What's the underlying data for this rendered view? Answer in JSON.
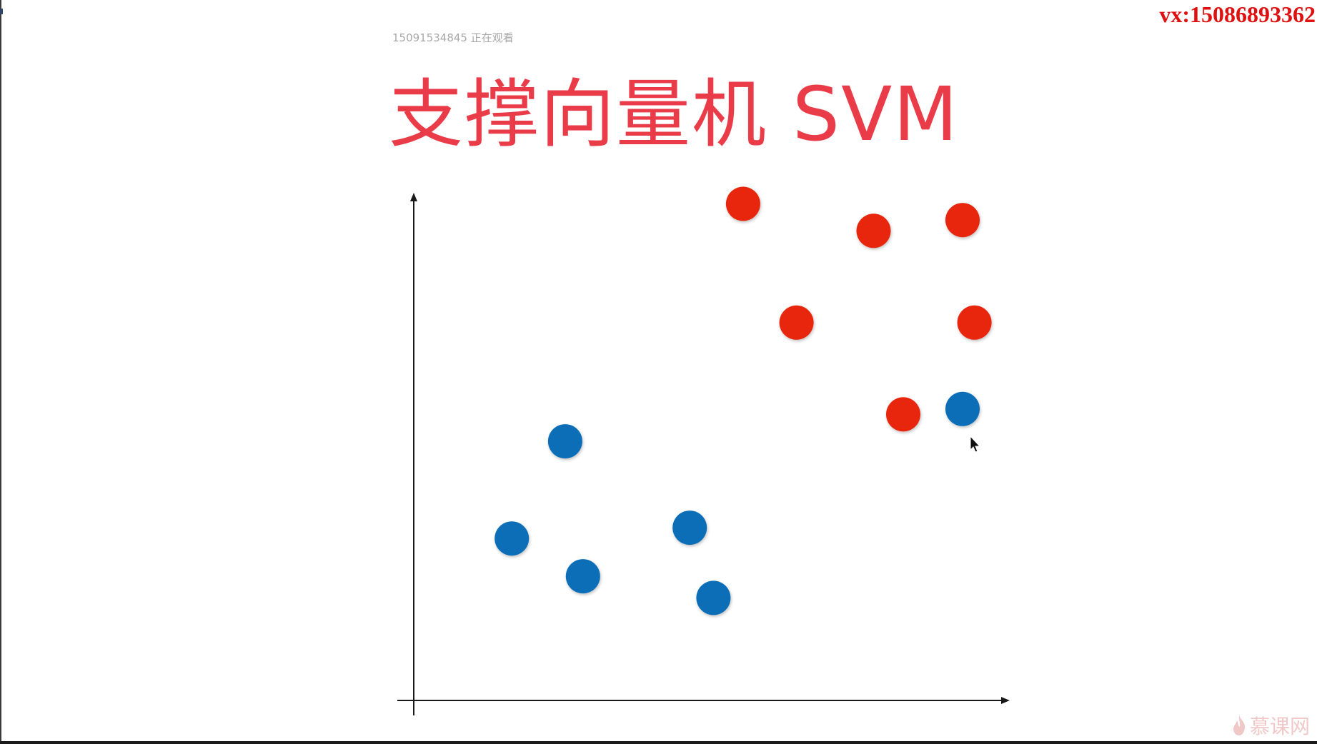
{
  "overlay": {
    "contact": "vx:15086893362",
    "viewer_note": "15091534845  正在观看"
  },
  "slide": {
    "title": "支撑向量机 SVM"
  },
  "brand": {
    "name": "慕课网",
    "icon": "flame-icon"
  },
  "colors": {
    "title": "#ea3b48",
    "red_class": "#e8250a",
    "blue_class": "#0a6eb8",
    "axis": "#1a1a1a",
    "contact": "#e01010"
  },
  "chart_data": {
    "type": "scatter",
    "title": "",
    "xlabel": "",
    "ylabel": "",
    "xlim": [
      0,
      100
    ],
    "ylim": [
      0,
      100
    ],
    "grid": false,
    "legend": "none",
    "series": [
      {
        "class": "red",
        "points": [
          {
            "x": 53,
            "y": 92
          },
          {
            "x": 75,
            "y": 87
          },
          {
            "x": 90,
            "y": 89
          },
          {
            "x": 62,
            "y": 70
          },
          {
            "x": 92,
            "y": 70
          },
          {
            "x": 80,
            "y": 53
          }
        ]
      },
      {
        "class": "blue",
        "points": [
          {
            "x": 90,
            "y": 54
          },
          {
            "x": 23,
            "y": 48
          },
          {
            "x": 14,
            "y": 30
          },
          {
            "x": 26,
            "y": 23
          },
          {
            "x": 44,
            "y": 32
          },
          {
            "x": 48,
            "y": 19
          }
        ]
      }
    ]
  }
}
